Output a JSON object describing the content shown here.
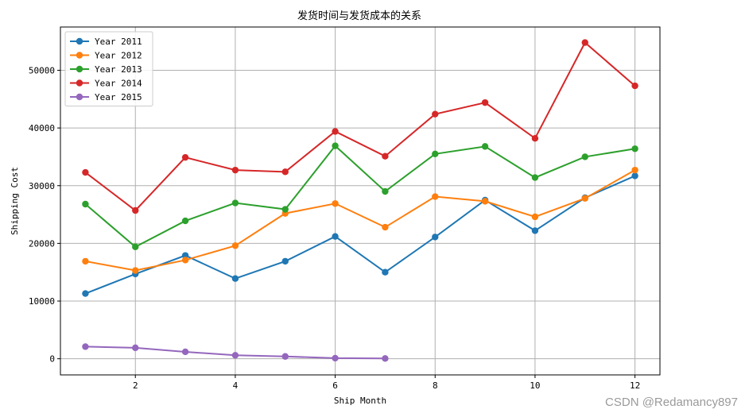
{
  "chart_data": {
    "type": "line",
    "title": "发货时间与发货成本的关系",
    "xlabel": "Ship Month",
    "ylabel": "Shipping Cost",
    "xlim": [
      0.5,
      12.5
    ],
    "ylim": [
      -2800,
      57500
    ],
    "xticks": [
      2,
      4,
      6,
      8,
      10,
      12
    ],
    "yticks": [
      0,
      10000,
      20000,
      30000,
      40000,
      50000
    ],
    "grid": true,
    "legend_position": "top-left",
    "series": [
      {
        "name": "Year 2011",
        "color": "#1f77b4",
        "x": [
          1,
          2,
          3,
          4,
          5,
          6,
          7,
          8,
          9,
          10,
          11,
          12
        ],
        "values": [
          11300,
          14700,
          17900,
          13900,
          16900,
          21200,
          15000,
          21100,
          27500,
          22200,
          27900,
          31700
        ]
      },
      {
        "name": "Year 2012",
        "color": "#ff7f0e",
        "x": [
          1,
          2,
          3,
          4,
          5,
          6,
          7,
          8,
          9,
          10,
          11,
          12
        ],
        "values": [
          16900,
          15300,
          17100,
          19600,
          25200,
          26900,
          22800,
          28100,
          27300,
          24600,
          27800,
          32700
        ]
      },
      {
        "name": "Year 2013",
        "color": "#2ca02c",
        "x": [
          1,
          2,
          3,
          4,
          5,
          6,
          7,
          8,
          9,
          10,
          11,
          12
        ],
        "values": [
          26800,
          19400,
          23900,
          27000,
          25900,
          36900,
          29000,
          35500,
          36800,
          31400,
          35000,
          36400
        ]
      },
      {
        "name": "Year 2014",
        "color": "#d62728",
        "x": [
          1,
          2,
          3,
          4,
          5,
          6,
          7,
          8,
          9,
          10,
          11,
          12
        ],
        "values": [
          32300,
          25700,
          34900,
          32700,
          32400,
          39400,
          35100,
          42400,
          44400,
          38200,
          54800,
          47300
        ]
      },
      {
        "name": "Year 2015",
        "color": "#9467bd",
        "x": [
          1,
          2,
          3,
          4,
          5,
          6,
          7
        ],
        "values": [
          2100,
          1900,
          1200,
          600,
          400,
          100,
          50
        ]
      }
    ]
  },
  "watermark": "CSDN @Redamancy897"
}
